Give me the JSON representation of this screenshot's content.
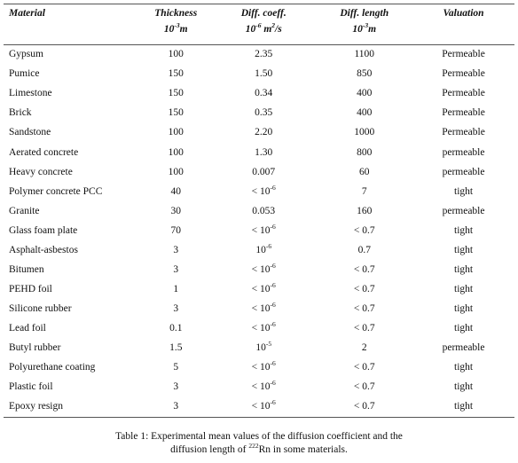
{
  "table": {
    "headers": {
      "material": "Material",
      "thickness": "Thickness",
      "thickness_unit_base": "10",
      "thickness_unit_exp": "-3",
      "thickness_unit_tail": "m",
      "diff_coeff": "Diff. coeff.",
      "diff_coeff_unit_base": "10",
      "diff_coeff_unit_exp": "-6",
      "diff_coeff_unit_mid": " m",
      "diff_coeff_unit_exp2": "2",
      "diff_coeff_unit_tail": "/s",
      "diff_length": "Diff. length",
      "diff_length_unit_base": "10",
      "diff_length_unit_exp": "-3",
      "diff_length_unit_tail": "m",
      "valuation": "Valuation"
    },
    "rows": [
      {
        "material": "Gypsum",
        "thickness": "100",
        "dc_base": "2.35",
        "dc_exp": "",
        "diff_length": "1100",
        "valuation": "Permeable"
      },
      {
        "material": "Pumice",
        "thickness": "150",
        "dc_base": "1.50",
        "dc_exp": "",
        "diff_length": "850",
        "valuation": "Permeable"
      },
      {
        "material": "Limestone",
        "thickness": "150",
        "dc_base": "0.34",
        "dc_exp": "",
        "diff_length": "400",
        "valuation": "Permeable"
      },
      {
        "material": "Brick",
        "thickness": "150",
        "dc_base": "0.35",
        "dc_exp": "",
        "diff_length": "400",
        "valuation": "Permeable"
      },
      {
        "material": "Sandstone",
        "thickness": "100",
        "dc_base": "2.20",
        "dc_exp": "",
        "diff_length": "1000",
        "valuation": "Permeable"
      },
      {
        "material": "Aerated concrete",
        "thickness": "100",
        "dc_base": "1.30",
        "dc_exp": "",
        "diff_length": "800",
        "valuation": "permeable"
      },
      {
        "material": "Heavy concrete",
        "thickness": "100",
        "dc_base": "0.007",
        "dc_exp": "",
        "diff_length": "60",
        "valuation": "permeable"
      },
      {
        "material": "Polymer concrete PCC",
        "thickness": "40",
        "dc_base": "< 10",
        "dc_exp": "-6",
        "diff_length": "7",
        "valuation": "tight"
      },
      {
        "material": "Granite",
        "thickness": "30",
        "dc_base": "0.053",
        "dc_exp": "",
        "diff_length": "160",
        "valuation": "permeable"
      },
      {
        "material": "Glass foam plate",
        "thickness": "70",
        "dc_base": "< 10",
        "dc_exp": "-6",
        "diff_length": "< 0.7",
        "valuation": "tight"
      },
      {
        "material": "Asphalt-asbestos",
        "thickness": "3",
        "dc_base": "10",
        "dc_exp": "-6",
        "diff_length": "0.7",
        "valuation": "tight"
      },
      {
        "material": "Bitumen",
        "thickness": "3",
        "dc_base": "< 10",
        "dc_exp": "-6",
        "diff_length": "< 0.7",
        "valuation": "tight"
      },
      {
        "material": "PEHD foil",
        "thickness": "1",
        "dc_base": "< 10",
        "dc_exp": "-6",
        "diff_length": "< 0.7",
        "valuation": "tight"
      },
      {
        "material": "Silicone rubber",
        "thickness": "3",
        "dc_base": "< 10",
        "dc_exp": "-6",
        "diff_length": "< 0.7",
        "valuation": "tight"
      },
      {
        "material": "Lead foil",
        "thickness": "0.1",
        "dc_base": "< 10",
        "dc_exp": "-6",
        "diff_length": "< 0.7",
        "valuation": "tight"
      },
      {
        "material": "Butyl rubber",
        "thickness": "1.5",
        "dc_base": "10",
        "dc_exp": "-5",
        "diff_length": "2",
        "valuation": "permeable"
      },
      {
        "material": "Polyurethane coating",
        "thickness": "5",
        "dc_base": "< 10",
        "dc_exp": "-6",
        "diff_length": "< 0.7",
        "valuation": "tight"
      },
      {
        "material": "Plastic foil",
        "thickness": "3",
        "dc_base": "< 10",
        "dc_exp": "-6",
        "diff_length": "< 0.7",
        "valuation": "tight"
      },
      {
        "material": "Epoxy resign",
        "thickness": "3",
        "dc_base": "< 10",
        "dc_exp": "-6",
        "diff_length": "< 0.7",
        "valuation": "tight"
      }
    ]
  },
  "caption": {
    "line1": "Table 1: Experimental mean values of the diffusion coefficient and the",
    "line2_pre": "diffusion length of ",
    "line2_sup": "222",
    "line2_post": "Rn in some materials."
  }
}
